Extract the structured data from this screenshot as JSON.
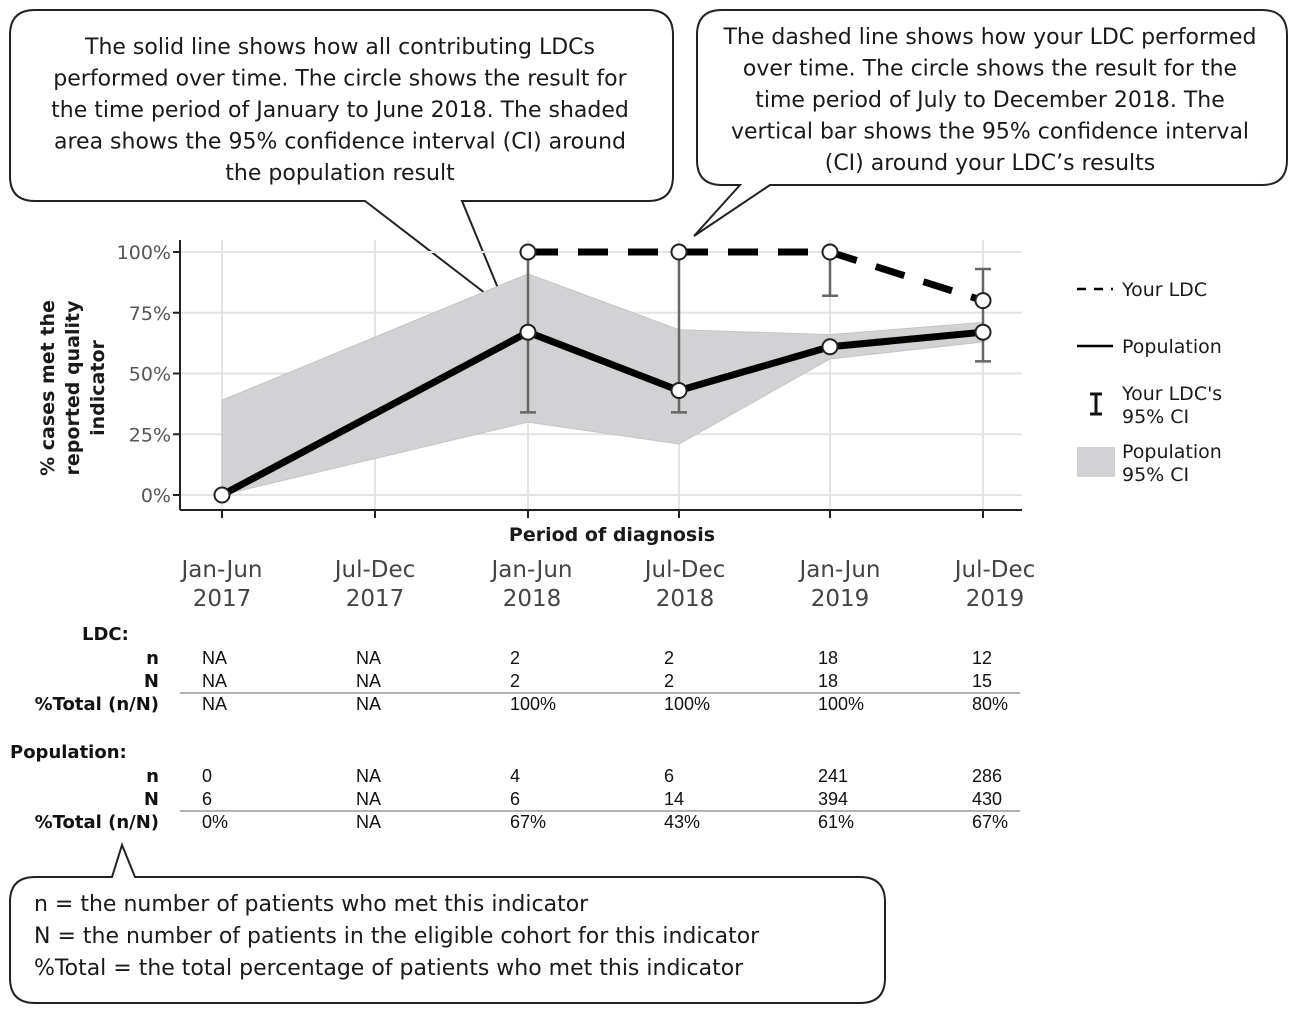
{
  "callouts": {
    "population_note": [
      "The solid line shows how all contributing LDCs",
      "performed over time. The circle shows the result for",
      "the time period of January to June 2018. The shaded",
      "area shows the 95% confidence interval (CI) around",
      "the population result"
    ],
    "ldc_note": [
      "The dashed line shows how your LDC performed",
      "over time. The circle shows the result for the",
      "time period of July to December 2018. The",
      "vertical bar shows the 95% confidence interval",
      "(CI) around your LDC’s results"
    ],
    "definitions": [
      "n = the number of patients who met this indicator",
      "N = the number of patients in the eligible cohort for this indicator",
      "%Total = the total percentage of patients who met this indicator"
    ]
  },
  "chart_data": {
    "type": "line",
    "xlabel": "Period of diagnosis",
    "ylabel": [
      "% cases met the",
      "reported quality",
      "indicator"
    ],
    "ylim": [
      0,
      100
    ],
    "y_ticks": [
      "0%",
      "25%",
      "50%",
      "75%",
      "100%"
    ],
    "y_tick_values": [
      0,
      25,
      50,
      75,
      100
    ],
    "grid": true,
    "categories": [
      [
        "Jan-Jun",
        "2017"
      ],
      [
        "Jul-Dec",
        "2017"
      ],
      [
        "Jan-Jun",
        "2018"
      ],
      [
        "Jul-Dec",
        "2018"
      ],
      [
        "Jan-Jun",
        "2019"
      ],
      [
        "Jul-Dec",
        "2019"
      ]
    ],
    "series": [
      {
        "name": "Your LDC",
        "style": "dashed",
        "values": [
          null,
          null,
          100,
          100,
          100,
          80
        ],
        "ci_low": [
          null,
          null,
          34,
          34,
          82,
          55
        ],
        "ci_high": [
          null,
          null,
          100,
          100,
          100,
          93
        ]
      },
      {
        "name": "Population",
        "style": "solid",
        "values": [
          0,
          null,
          67,
          43,
          61,
          67
        ],
        "ci_low": [
          0,
          null,
          30,
          21,
          56,
          63
        ],
        "ci_high": [
          39,
          null,
          91,
          68,
          66,
          71
        ]
      }
    ],
    "legend": {
      "placement": "right",
      "items": [
        {
          "key": "dashed",
          "label": [
            "Your LDC"
          ]
        },
        {
          "key": "solid",
          "label": [
            "Population"
          ]
        },
        {
          "key": "errorbar",
          "label": [
            "Your LDC's",
            "95% CI"
          ]
        },
        {
          "key": "band",
          "label": [
            "Population",
            "95% CI"
          ]
        }
      ]
    },
    "colors": {
      "line": "#000000",
      "band": "#d2d2d4",
      "errorbar": "#666666",
      "grid": "#e4e4e4"
    }
  },
  "tables": [
    {
      "title": "LDC:",
      "rows": [
        {
          "label": "n",
          "cells": [
            "NA",
            "NA",
            "2",
            "2",
            "18",
            "12"
          ]
        },
        {
          "label": "N",
          "cells": [
            "NA",
            "NA",
            "2",
            "2",
            "18",
            "15"
          ]
        },
        {
          "label": "%Total (n/N)",
          "cells": [
            "NA",
            "NA",
            "100%",
            "100%",
            "100%",
            "80%"
          ]
        }
      ]
    },
    {
      "title": "Population:",
      "rows": [
        {
          "label": "n",
          "cells": [
            "0",
            "NA",
            "4",
            "6",
            "241",
            "286"
          ]
        },
        {
          "label": "N",
          "cells": [
            "6",
            "NA",
            "6",
            "14",
            "394",
            "430"
          ]
        },
        {
          "label": "%Total (n/N)",
          "cells": [
            "0%",
            "NA",
            "67%",
            "43%",
            "61%",
            "67%"
          ]
        }
      ]
    }
  ]
}
